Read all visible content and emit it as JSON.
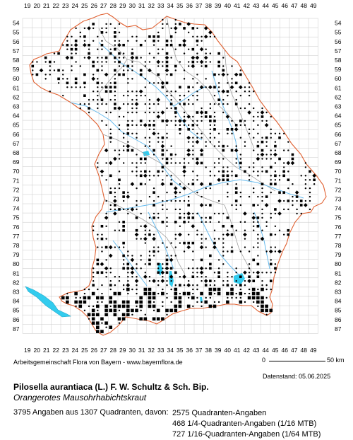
{
  "map": {
    "x_labels": [
      "19",
      "20",
      "21",
      "22",
      "23",
      "24",
      "25",
      "26",
      "27",
      "28",
      "29",
      "30",
      "31",
      "32",
      "33",
      "34",
      "35",
      "36",
      "37",
      "38",
      "39",
      "40",
      "41",
      "42",
      "43",
      "44",
      "45",
      "46",
      "47",
      "48",
      "49"
    ],
    "y_labels": [
      "54",
      "55",
      "56",
      "57",
      "58",
      "59",
      "60",
      "61",
      "62",
      "63",
      "64",
      "65",
      "66",
      "67",
      "68",
      "69",
      "70",
      "71",
      "72",
      "73",
      "74",
      "75",
      "76",
      "77",
      "78",
      "79",
      "80",
      "81",
      "82",
      "83",
      "84",
      "85",
      "86",
      "87"
    ],
    "colors": {
      "grid": "#c8c8c8",
      "border": "#e06030",
      "district": "#a0a0a0",
      "water": "#33ccee",
      "river": "#66bbee",
      "marker": "#000000"
    }
  },
  "footer": {
    "credit": "Arbeitsgemeinschaft Flora von Bayern - www.bayernflora.de",
    "scale_0": "0",
    "scale_50": "50 km",
    "datenstand": "Datenstand: 05.06.2025",
    "scientific_name": "Pilosella aurantiaca (L.) F. W. Schultz & Sch. Bip.",
    "common_name": "Orangerotes Mausohrhabichtskraut",
    "summary": "3795 Angaben aus 1307 Quadranten, davon:",
    "row1": "2575 Quadranten-Angaben",
    "row2": "468 1/4-Quadranten-Angaben (1/16 MTB)",
    "row3": "727 1/16-Quadranten-Angaben (1/64 MTB)"
  }
}
